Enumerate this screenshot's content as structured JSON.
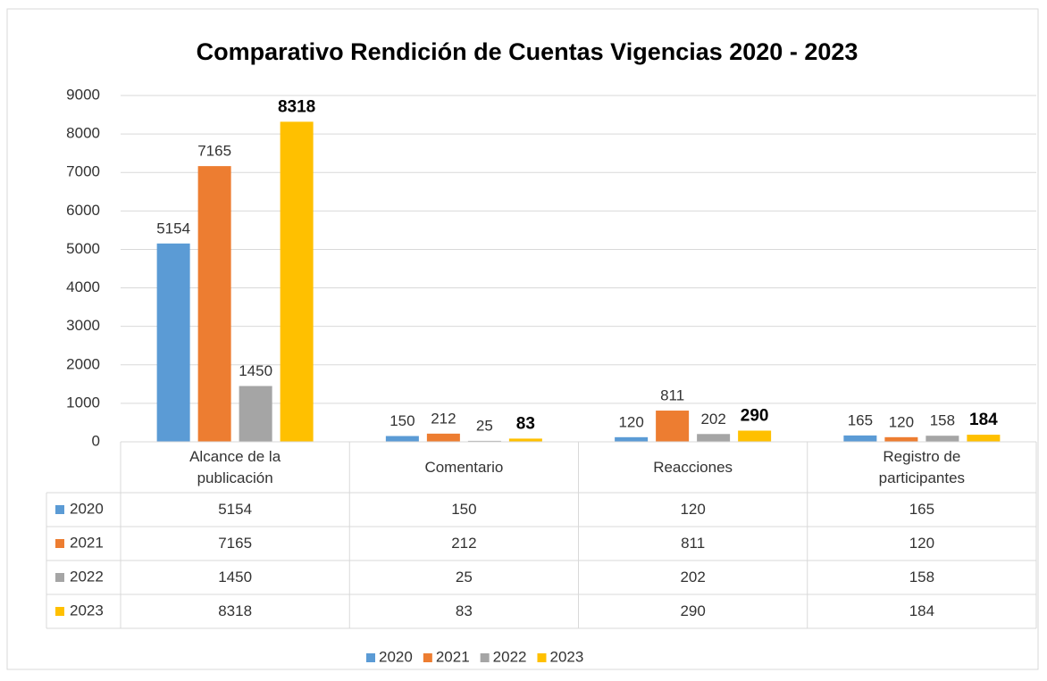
{
  "chart_data": {
    "type": "bar",
    "title": "Comparativo Rendición de Cuentas Vigencias 2020 - 2023",
    "categories": [
      "Alcance de la publicación",
      "Comentario",
      "Reacciones",
      "Registro de participantes"
    ],
    "series": [
      {
        "name": "2020",
        "color": "#5b9bd5",
        "values": [
          5154,
          150,
          120,
          165
        ]
      },
      {
        "name": "2021",
        "color": "#ed7d31",
        "values": [
          7165,
          212,
          811,
          120
        ]
      },
      {
        "name": "2022",
        "color": "#a5a5a5",
        "values": [
          1450,
          25,
          202,
          158
        ]
      },
      {
        "name": "2023",
        "color": "#ffc000",
        "values": [
          8318,
          83,
          290,
          184
        ],
        "label_bold": true
      }
    ],
    "ylim": [
      0,
      9000
    ],
    "yticks": [
      0,
      1000,
      2000,
      3000,
      4000,
      5000,
      6000,
      7000,
      8000,
      9000
    ],
    "grid": true,
    "legend": "bottom",
    "data_table": true
  }
}
